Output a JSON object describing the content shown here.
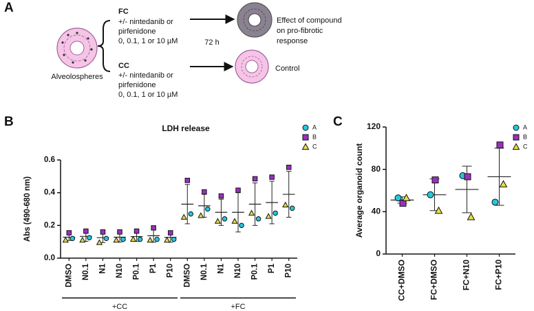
{
  "panel_labels": [
    "A",
    "B",
    "C"
  ],
  "diagram": {
    "source": "Alveolospheres",
    "fc_label": "FC",
    "fc_lines": [
      "+/- nintedanib or",
      "pirfenidone",
      "0, 0.1, 1 or 10 µM"
    ],
    "cc_label": "CC",
    "cc_lines": [
      "+/- nintedanib or",
      "pirfenidone",
      "0, 0.1, 1 or 10 µM"
    ],
    "time": "72 h",
    "outcome_lines": [
      "Effect of compound",
      "on pro-fibrotic",
      "response"
    ],
    "control": "Control"
  },
  "chart_data": [
    {
      "type": "dot",
      "title": "LDH release",
      "y_label": "Abs (490-680 nm)",
      "categories": [
        "DMSO",
        "N0.1",
        "N1",
        "N10",
        "P0.1",
        "P1",
        "P10",
        "DMSO",
        "N0.1",
        "N1",
        "N10",
        "P0.1",
        "P1",
        "P10"
      ],
      "groups": [
        "+CC",
        "+FC"
      ],
      "series": [
        {
          "name": "A",
          "color": "#22c8e0",
          "marker": "circle",
          "values": [
            0.12,
            0.125,
            0.12,
            0.115,
            0.115,
            0.115,
            0.115,
            0.27,
            0.3,
            0.24,
            0.2,
            0.24,
            0.275,
            0.305
          ]
        },
        {
          "name": "B",
          "color": "#9b2fc0",
          "marker": "square",
          "values": [
            0.155,
            0.165,
            0.16,
            0.16,
            0.165,
            0.185,
            0.155,
            0.475,
            0.405,
            0.38,
            0.415,
            0.485,
            0.495,
            0.555
          ]
        },
        {
          "name": "C",
          "color": "#e6df45",
          "marker": "triangle",
          "values": [
            0.11,
            0.11,
            0.095,
            0.11,
            0.115,
            0.11,
            0.11,
            0.25,
            0.26,
            0.225,
            0.225,
            0.275,
            0.255,
            0.325
          ]
        }
      ],
      "summary": {
        "mean": [
          0.128,
          0.133,
          0.125,
          0.128,
          0.132,
          0.137,
          0.127,
          0.33,
          0.32,
          0.28,
          0.28,
          0.33,
          0.34,
          0.39
        ],
        "sd": [
          0.02,
          0.03,
          0.03,
          0.03,
          0.03,
          0.04,
          0.03,
          0.12,
          0.07,
          0.08,
          0.12,
          0.13,
          0.13,
          0.14
        ]
      },
      "ylim": [
        0,
        0.6
      ],
      "yticks": [
        {
          "value": 0,
          "label": "0.0"
        },
        0.2,
        0.4,
        0.6
      ],
      "legend": "upper right"
    },
    {
      "type": "dot",
      "y_label": "Average organoid count",
      "categories": [
        "CC+DMSO",
        "FC+DMSO",
        "FC+N10",
        "FC+P10"
      ],
      "series": [
        {
          "name": "A",
          "color": "#22c8e0",
          "marker": "circle",
          "values": [
            53,
            56,
            74,
            49
          ]
        },
        {
          "name": "B",
          "color": "#9b2fc0",
          "marker": "square",
          "values": [
            48,
            70,
            73,
            103
          ]
        },
        {
          "name": "C",
          "color": "#e6df45",
          "marker": "triangle",
          "values": [
            53,
            41,
            35,
            66
          ]
        }
      ],
      "summary": {
        "mean": [
          51,
          56,
          61,
          73
        ],
        "sd": [
          3,
          15,
          22,
          27
        ]
      },
      "ylim": [
        0,
        120
      ],
      "yticks": [
        0,
        40,
        80,
        120
      ],
      "legend": "upper right"
    }
  ]
}
